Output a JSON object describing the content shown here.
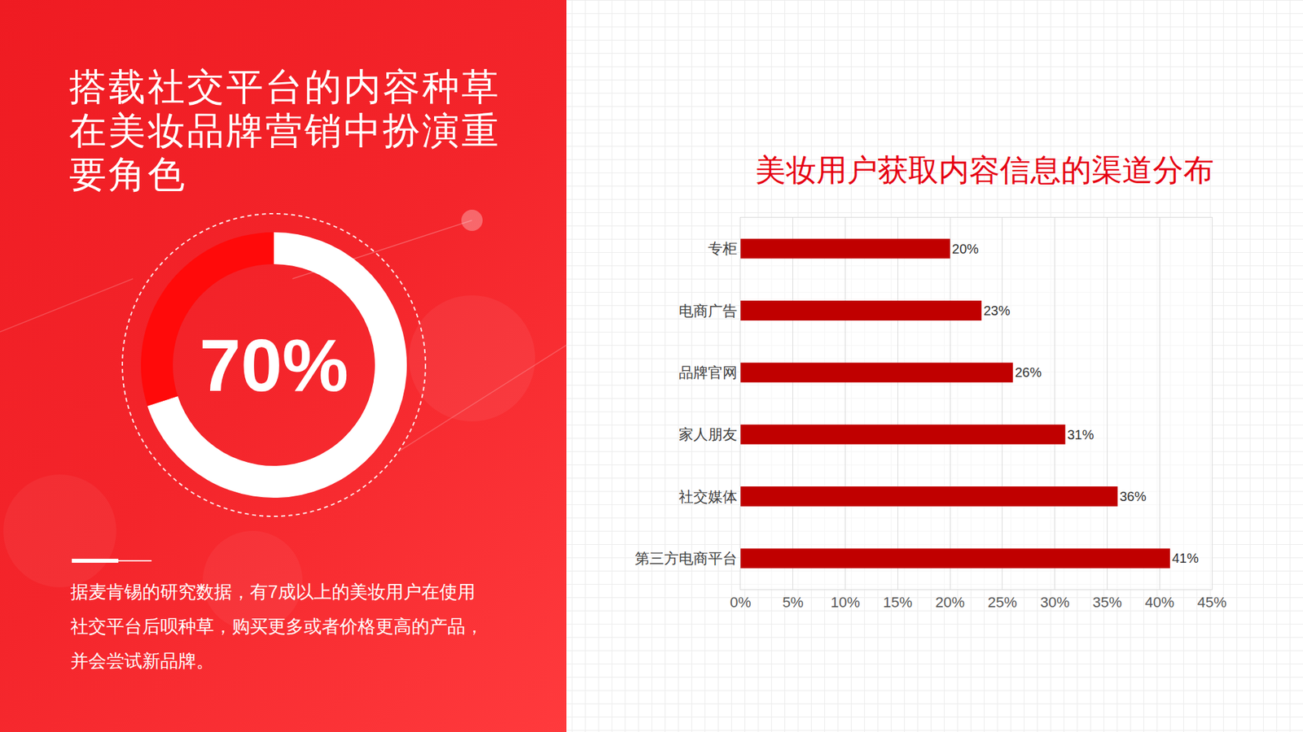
{
  "panel": {
    "title_lines": [
      "搭载社交平台的内容种草",
      "在美妆品牌营销中扮演重",
      "要角色"
    ],
    "note_lines": [
      "据麦肯锡的研究数据，有7成以上的美妆用户在使用",
      "社交平台后呗种草，购买更多或者价格更高的产品，",
      "并会尝试新品牌。"
    ]
  },
  "chart_data": [
    {
      "type": "pie",
      "values": [
        70,
        30
      ],
      "colors": [
        "#ffffff",
        "#ff0a0a"
      ],
      "center_text": "70%"
    },
    {
      "type": "bar",
      "title": "美妆用户获取内容信息的渠道分布",
      "orientation": "horizontal",
      "categories": [
        "专柜",
        "电商广告",
        "品牌官网",
        "家人朋友",
        "社交媒体",
        "第三方电商平台"
      ],
      "values": [
        20,
        23,
        26,
        31,
        36,
        41
      ],
      "value_labels": [
        "20%",
        "23%",
        "26%",
        "31%",
        "36%",
        "41%"
      ],
      "color": "#c00000",
      "data_labels": true,
      "grid": true,
      "xlim": [
        0,
        45
      ],
      "xticks": [
        {
          "value": 0,
          "label": "0%"
        },
        {
          "value": 5,
          "label": "5%"
        },
        {
          "value": 10,
          "label": "10%"
        },
        {
          "value": 15,
          "label": "15%"
        },
        {
          "value": 20,
          "label": "20%"
        },
        {
          "value": 25,
          "label": "25%"
        },
        {
          "value": 30,
          "label": "30%"
        },
        {
          "value": 35,
          "label": "35%"
        },
        {
          "value": 40,
          "label": "40%"
        },
        {
          "value": 45,
          "label": "45%"
        }
      ]
    }
  ]
}
